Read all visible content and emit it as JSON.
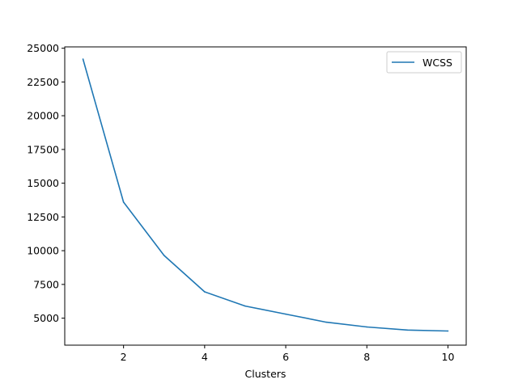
{
  "chart_data": {
    "type": "line",
    "title": "",
    "xlabel": "Clusters",
    "ylabel": "",
    "xlim": [
      0.55,
      10.45
    ],
    "ylim": [
      3000,
      25100
    ],
    "x_ticks": [
      2,
      4,
      6,
      8,
      10
    ],
    "y_ticks": [
      5000,
      7500,
      10000,
      12500,
      15000,
      17500,
      20000,
      22500,
      25000
    ],
    "grid": false,
    "legend_placement": "top-right",
    "series": [
      {
        "name": "WCSS",
        "color": "#1f77b4",
        "x": [
          1,
          2,
          3,
          4,
          5,
          6,
          7,
          8,
          9,
          10
        ],
        "values": [
          24200,
          13600,
          9650,
          6950,
          5900,
          5300,
          4700,
          4350,
          4120,
          4050
        ]
      }
    ]
  }
}
